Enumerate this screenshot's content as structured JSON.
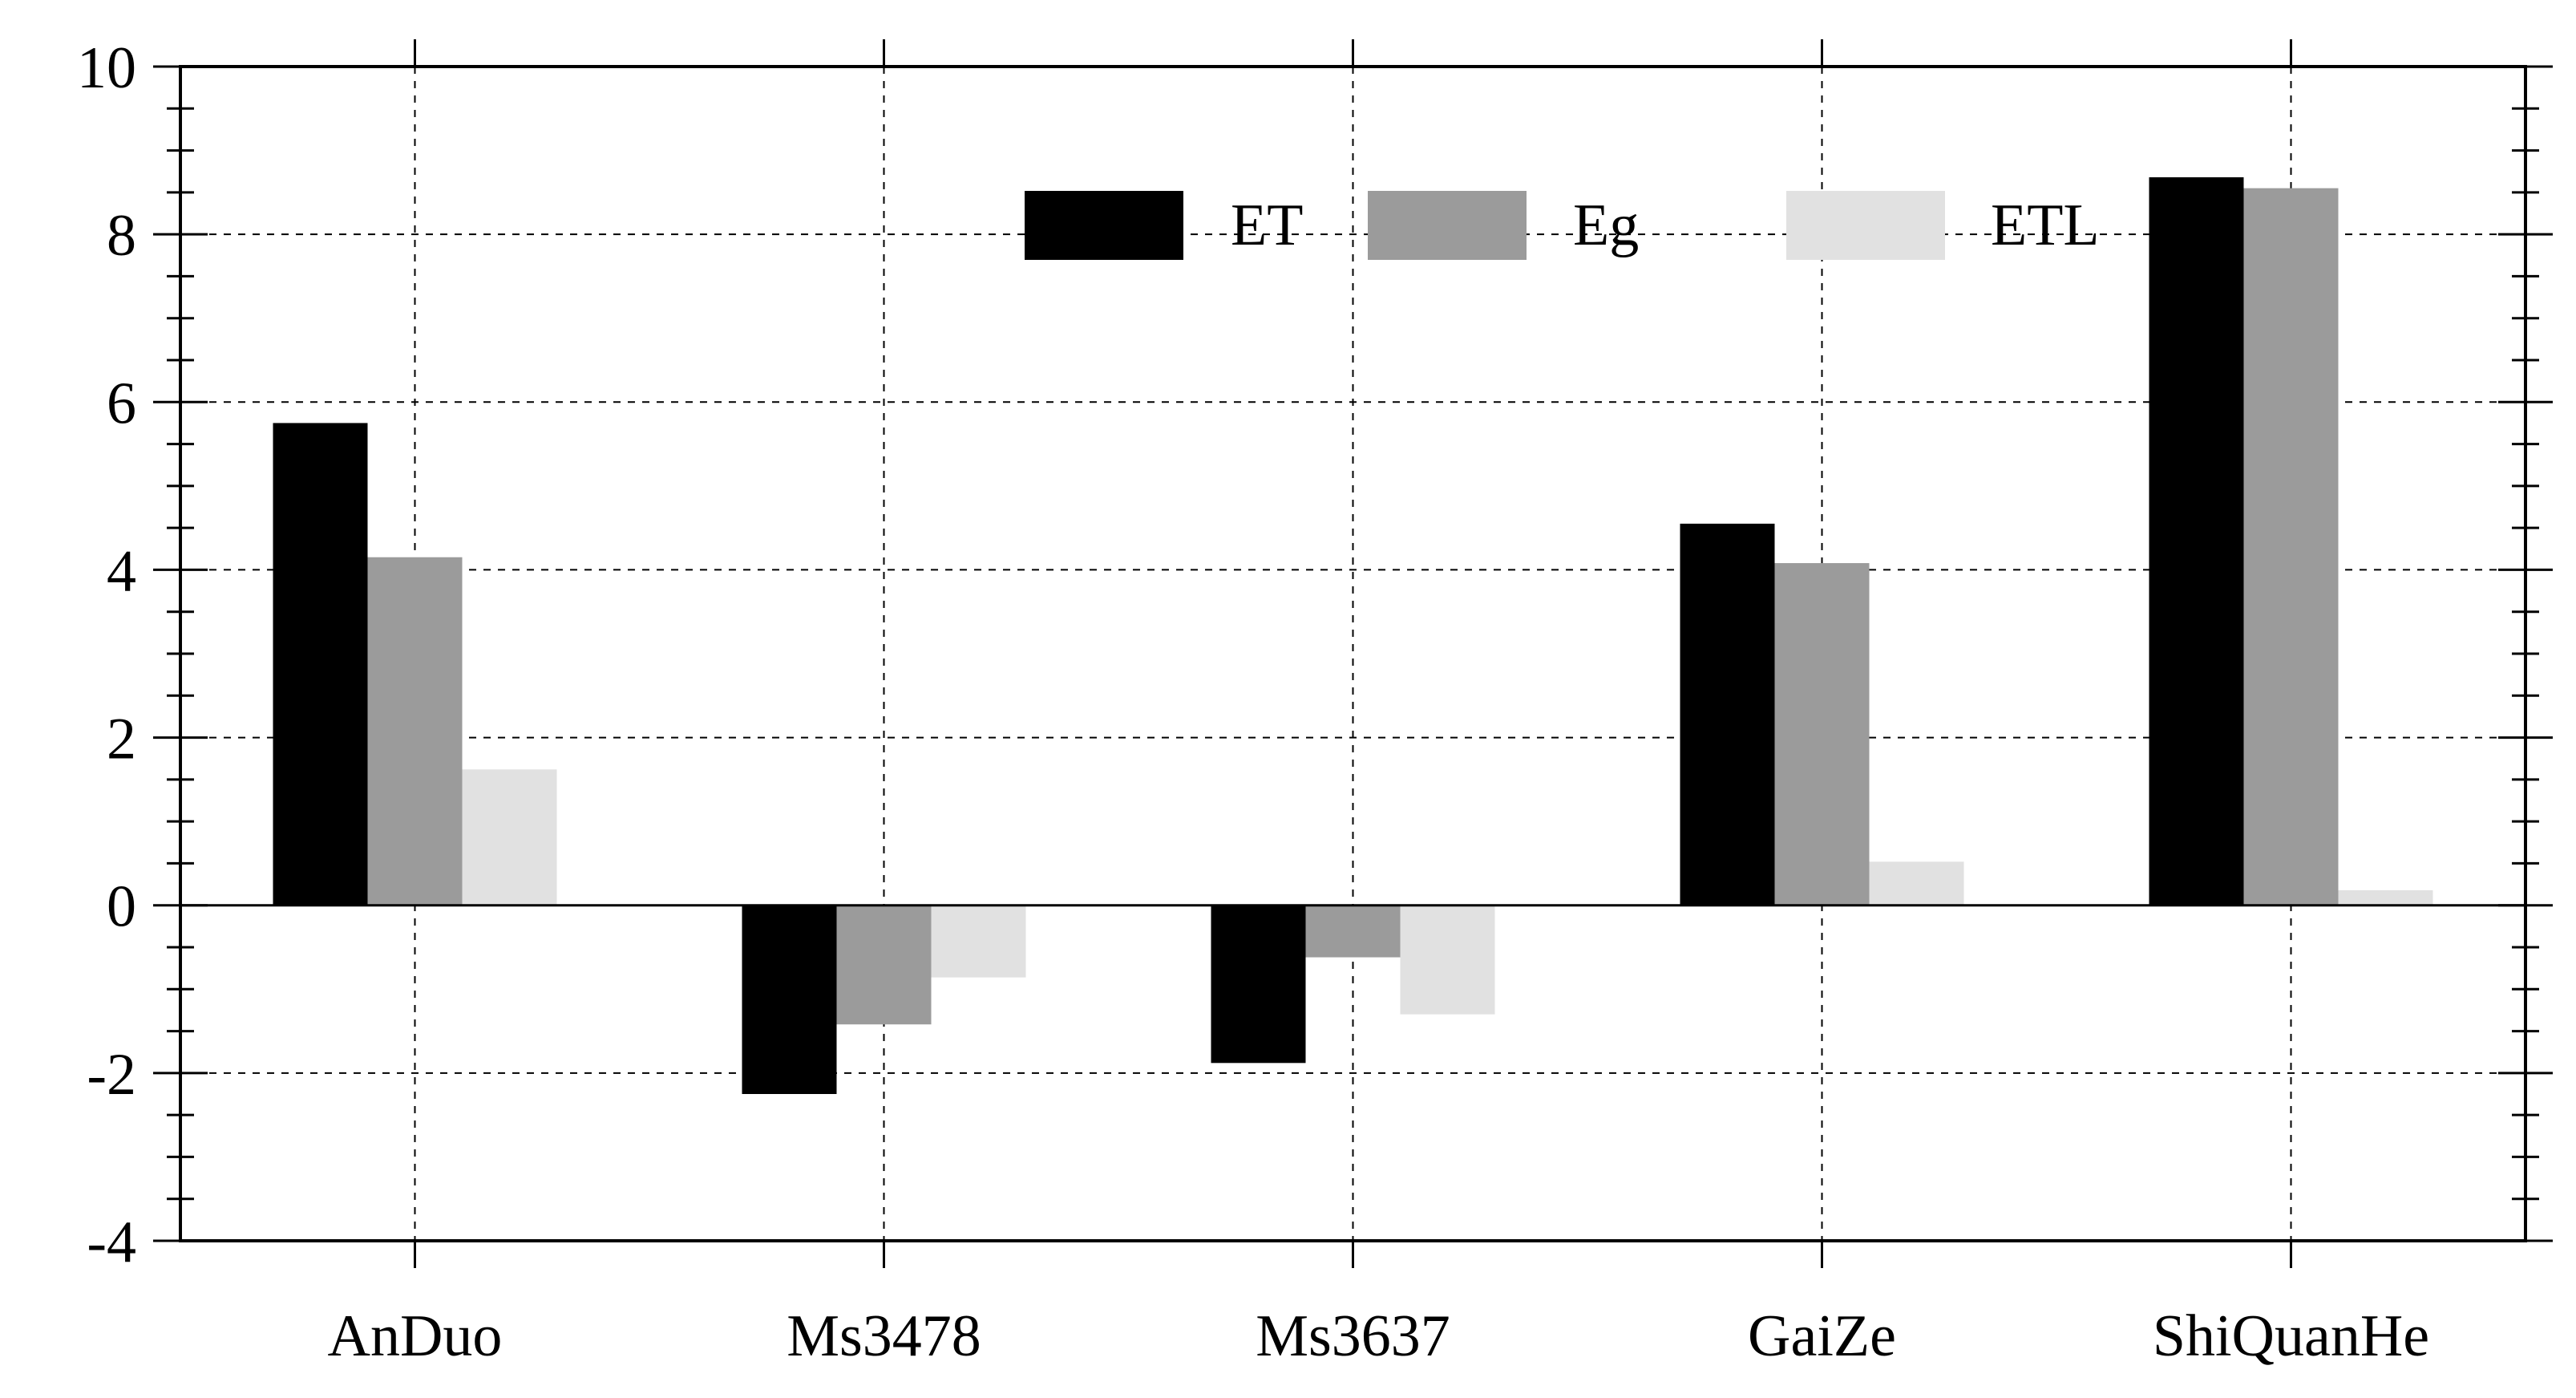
{
  "chart_data": {
    "type": "bar",
    "categories": [
      "AnDuo",
      "Ms3478",
      "Ms3637",
      "GaiZe",
      "ShiQuanHe"
    ],
    "series": [
      {
        "name": "ET",
        "color": "#000000",
        "values": [
          5.75,
          -2.25,
          -1.88,
          4.55,
          8.68
        ]
      },
      {
        "name": "Eg",
        "color": "#9b9b9b",
        "values": [
          4.15,
          -1.42,
          -0.62,
          4.08,
          8.55
        ]
      },
      {
        "name": "ETL",
        "color": "#e1e1e1",
        "values": [
          1.62,
          -0.86,
          -1.3,
          0.52,
          0.18
        ]
      }
    ],
    "ylim": [
      -4,
      10
    ],
    "yticks": [
      -4,
      -2,
      0,
      2,
      4,
      6,
      8,
      10
    ],
    "ytick_labels": [
      "-4",
      "-2",
      "0",
      "2",
      "4",
      "6",
      "8",
      "10"
    ],
    "grid": true,
    "legend_position": "top-center",
    "title": "",
    "xlabel": "",
    "ylabel": ""
  }
}
